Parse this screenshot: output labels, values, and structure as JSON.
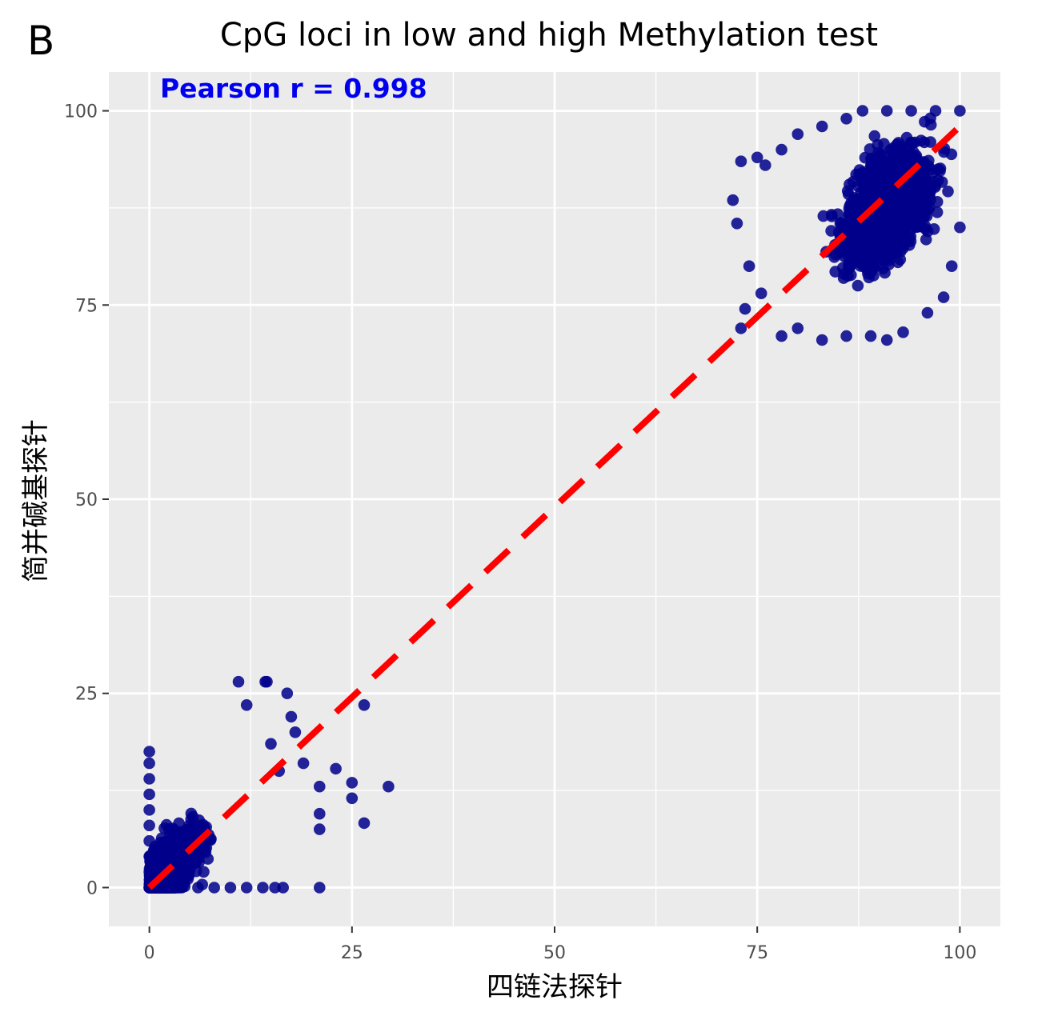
{
  "panel_label": "B",
  "chart_data": {
    "type": "scatter",
    "title": "CpG loci in low and high Methylation test",
    "xlabel": "四链法探针",
    "ylabel": "简并碱基探针",
    "xlim": [
      -5,
      105
    ],
    "ylim": [
      -5,
      105
    ],
    "x_ticks": [
      0,
      25,
      50,
      75,
      100
    ],
    "y_ticks": [
      0,
      25,
      50,
      75,
      100
    ],
    "x_tick_labels": [
      "0",
      "25",
      "50",
      "75",
      "100"
    ],
    "y_tick_labels": [
      "0",
      "25",
      "50",
      "75",
      "100"
    ],
    "grid": true,
    "annotation": "Pearson r = 0.998",
    "point_color": "#00008b",
    "fit_line_color": "#ff0000",
    "fit_line": {
      "x": [
        0,
        100
      ],
      "y": [
        0,
        98
      ]
    },
    "clusters": [
      {
        "name": "low",
        "x_center": 6,
        "y_center": 5,
        "x_range": [
          0,
          30
        ],
        "y_range": [
          0,
          27
        ]
      },
      {
        "name": "high",
        "x_center": 91,
        "y_center": 88,
        "x_range": [
          71,
          100
        ],
        "y_range": [
          70,
          100
        ]
      }
    ],
    "series": [
      {
        "values": [
          [
            26.5,
            23.5
          ],
          [
            29.5,
            13
          ],
          [
            26.5,
            8.3
          ],
          [
            25,
            13.5
          ],
          [
            25,
            11.5
          ],
          [
            23,
            15.3
          ],
          [
            21,
            13
          ],
          [
            21,
            9.5
          ],
          [
            21,
            7.5
          ],
          [
            21,
            0
          ],
          [
            11,
            26.5
          ],
          [
            14.5,
            26.5
          ],
          [
            14.3,
            26.5
          ],
          [
            17,
            25
          ],
          [
            12,
            23.5
          ],
          [
            17.5,
            22
          ],
          [
            18,
            20
          ],
          [
            15,
            18.5
          ],
          [
            19,
            16
          ],
          [
            16,
            15
          ],
          [
            0,
            17.5
          ],
          [
            0,
            16
          ],
          [
            0,
            14
          ],
          [
            0,
            12
          ],
          [
            0,
            10
          ],
          [
            0,
            8
          ],
          [
            0,
            6
          ],
          [
            0,
            4
          ],
          [
            0,
            2
          ],
          [
            0,
            0
          ],
          [
            2,
            0
          ],
          [
            4,
            0
          ],
          [
            6,
            0
          ],
          [
            8,
            0
          ],
          [
            10,
            0
          ],
          [
            12,
            0
          ],
          [
            14,
            0
          ],
          [
            15.5,
            0
          ],
          [
            16.5,
            0
          ],
          [
            73,
            72
          ],
          [
            73.5,
            74.5
          ],
          [
            72,
            88.5
          ],
          [
            72.5,
            85.5
          ],
          [
            74,
            80
          ],
          [
            75.5,
            76.5
          ],
          [
            73,
            93.5
          ],
          [
            75,
            94
          ],
          [
            78,
            71
          ],
          [
            80,
            72
          ],
          [
            83,
            70.5
          ],
          [
            86,
            71
          ],
          [
            89,
            71
          ],
          [
            91,
            70.5
          ],
          [
            93,
            71.5
          ],
          [
            96,
            74
          ],
          [
            98,
            76
          ],
          [
            99,
            80
          ],
          [
            100,
            85
          ],
          [
            100,
            100
          ],
          [
            97,
            100
          ],
          [
            94,
            100
          ],
          [
            91,
            100
          ],
          [
            88,
            100
          ],
          [
            86,
            99
          ],
          [
            83,
            98
          ],
          [
            80,
            97
          ],
          [
            78,
            95
          ],
          [
            76,
            93
          ]
        ]
      }
    ]
  }
}
